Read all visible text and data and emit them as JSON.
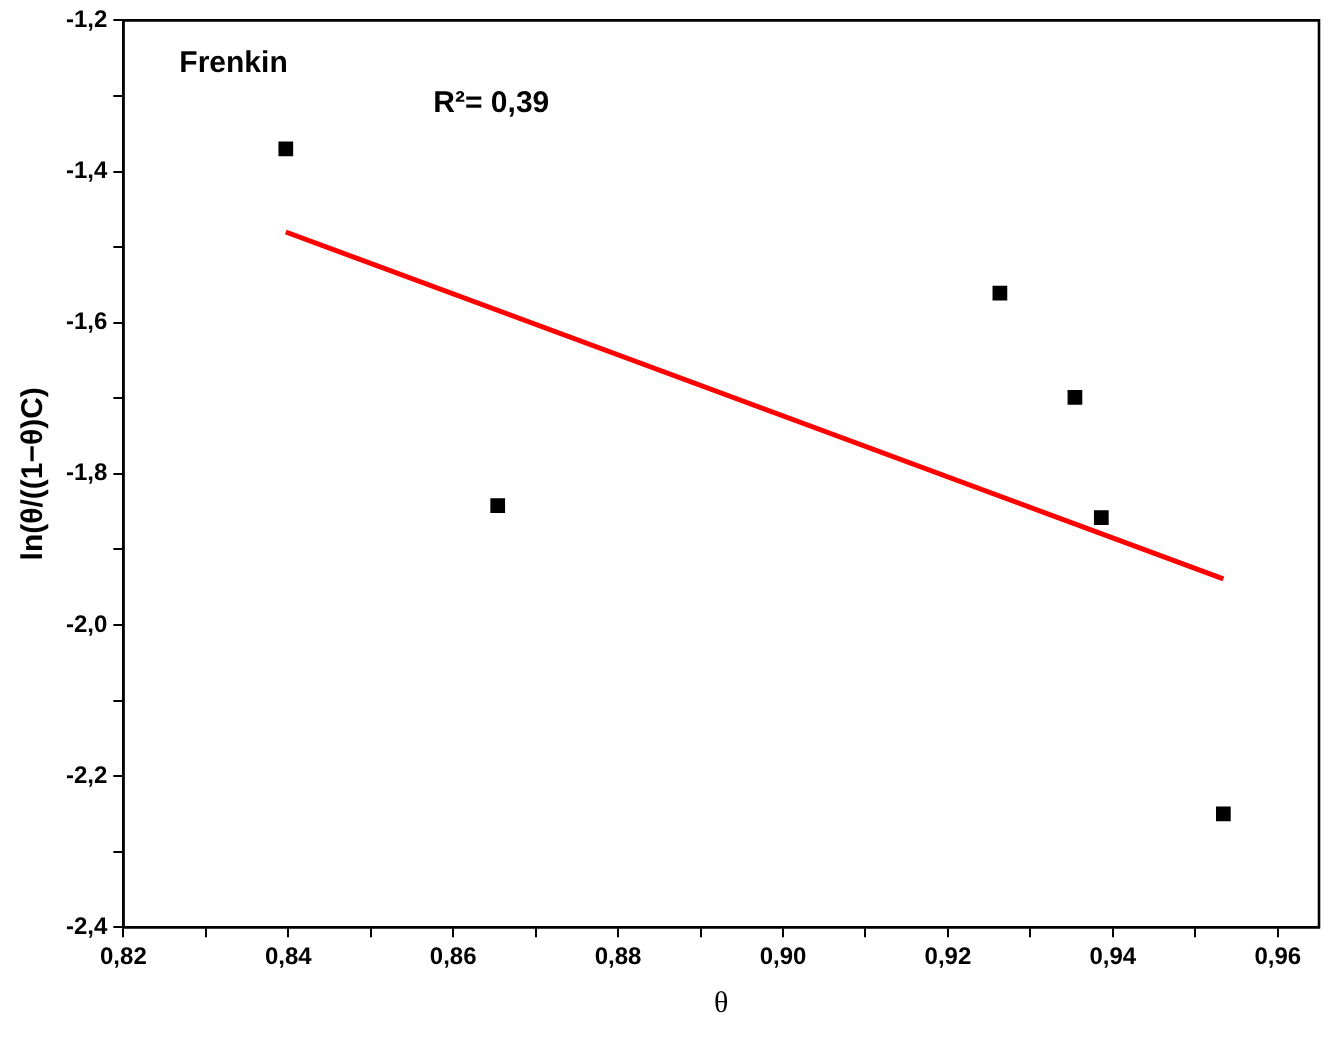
{
  "chart_data": {
    "type": "scatter",
    "xlabel": "θ",
    "ylabel": "ln(θ/((1−θ)C)",
    "annotations": [
      "Frenkin",
      "R²= 0,39"
    ],
    "xlim": [
      0.82,
      0.965
    ],
    "ylim": [
      -2.4,
      -1.2
    ],
    "xticks": [
      {
        "value": 0.82,
        "label": "0,82"
      },
      {
        "value": 0.83,
        "label": null
      },
      {
        "value": 0.84,
        "label": "0,84"
      },
      {
        "value": 0.85,
        "label": null
      },
      {
        "value": 0.86,
        "label": "0,86"
      },
      {
        "value": 0.87,
        "label": null
      },
      {
        "value": 0.88,
        "label": "0,88"
      },
      {
        "value": 0.89,
        "label": null
      },
      {
        "value": 0.9,
        "label": "0,90"
      },
      {
        "value": 0.91,
        "label": null
      },
      {
        "value": 0.92,
        "label": "0,92"
      },
      {
        "value": 0.93,
        "label": null
      },
      {
        "value": 0.94,
        "label": "0,94"
      },
      {
        "value": 0.95,
        "label": null
      },
      {
        "value": 0.96,
        "label": "0,96"
      }
    ],
    "yticks": [
      {
        "value": -2.4,
        "label": "-2,4"
      },
      {
        "value": -2.3,
        "label": null
      },
      {
        "value": -2.2,
        "label": "-2,2"
      },
      {
        "value": -2.1,
        "label": null
      },
      {
        "value": -2.0,
        "label": "-2,0"
      },
      {
        "value": -1.9,
        "label": null
      },
      {
        "value": -1.8,
        "label": "-1,8"
      },
      {
        "value": -1.7,
        "label": null
      },
      {
        "value": -1.6,
        "label": "-1,6"
      },
      {
        "value": -1.5,
        "label": null
      },
      {
        "value": -1.4,
        "label": "-1,4"
      },
      {
        "value": -1.3,
        "label": null
      },
      {
        "value": -1.2,
        "label": "-1,2"
      }
    ],
    "grid": false,
    "legend": false,
    "marker": "square",
    "series": [
      {
        "color": "#000000",
        "x": [
          0.8397,
          0.8654,
          0.9263,
          0.9354,
          0.9386,
          0.9534
        ],
        "values": [
          -1.37,
          -1.842,
          -1.561,
          -1.699,
          -1.858,
          -2.25
        ]
      },
      {
        "type": "line",
        "color": "#ff0000",
        "x": [
          0.8397,
          0.9534
        ],
        "values": [
          -1.48,
          -1.939
        ],
        "line_style": "solid",
        "marker": "none"
      }
    ]
  }
}
